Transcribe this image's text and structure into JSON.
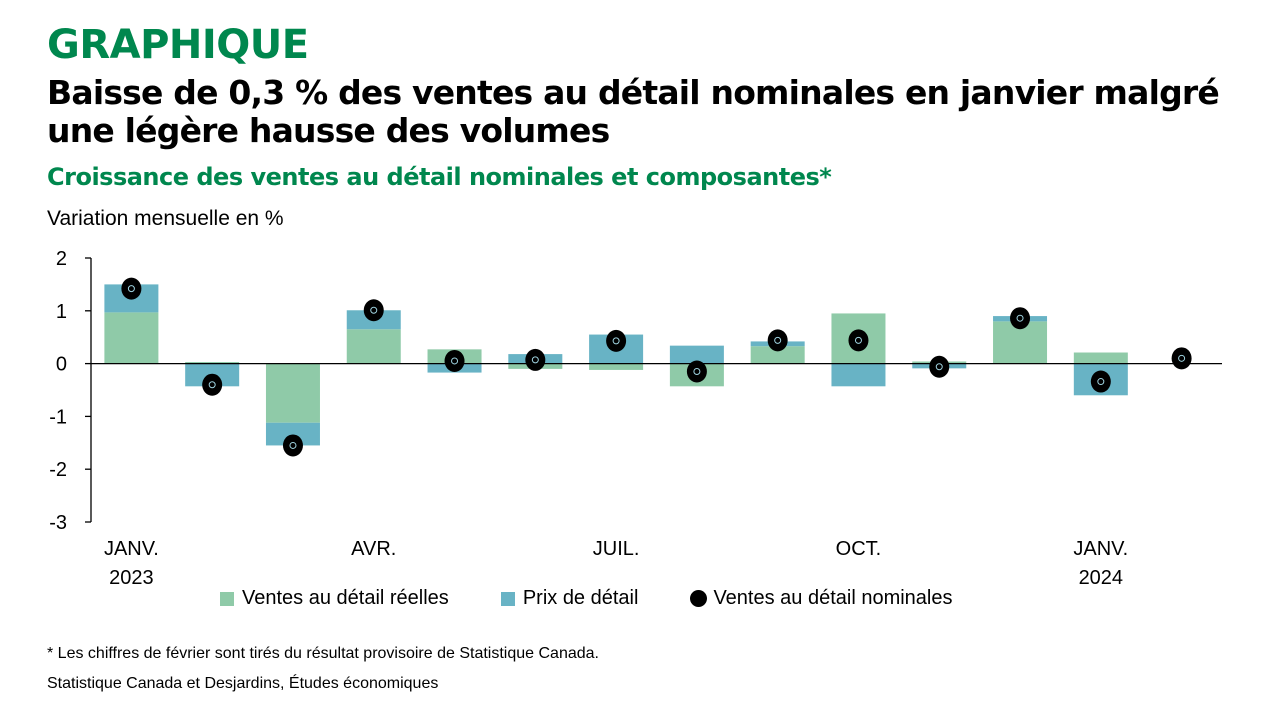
{
  "header": {
    "kicker": "GRAPHIQUE",
    "title": "Baisse de 0,3 % des ventes au détail nominales en janvier malgré une légère hausse des volumes",
    "subtitle": "Croissance des ventes au détail nominales et composantes*",
    "unit_label": "Variation mensuelle en %"
  },
  "chart_data": {
    "type": "bar",
    "stacked": true,
    "title": "Croissance des ventes au détail nominales et composantes*",
    "ylabel": "Variation mensuelle en %",
    "ylim": [
      -3,
      2
    ],
    "yticks": [
      2,
      1,
      0,
      -1,
      -2,
      -3
    ],
    "categories": [
      "2023-01",
      "2023-02",
      "2023-03",
      "2023-04",
      "2023-05",
      "2023-06",
      "2023-07",
      "2023-08",
      "2023-09",
      "2023-10",
      "2023-11",
      "2023-12",
      "2024-01",
      "2024-02"
    ],
    "xtick_labels": [
      {
        "index": 0,
        "line1": "JANV.",
        "line2": "2023"
      },
      {
        "index": 3,
        "line1": "AVR.",
        "line2": ""
      },
      {
        "index": 6,
        "line1": "JUIL.",
        "line2": ""
      },
      {
        "index": 9,
        "line1": "OCT.",
        "line2": ""
      },
      {
        "index": 12,
        "line1": "JANV.",
        "line2": "2024"
      }
    ],
    "series": [
      {
        "name": "Ventes au détail réelles",
        "kind": "bar",
        "color": "#8FCAA8",
        "values": [
          0.97,
          0.03,
          -1.12,
          0.65,
          0.27,
          -0.1,
          -0.12,
          -0.43,
          0.33,
          0.95,
          0.04,
          0.8,
          0.21,
          null
        ]
      },
      {
        "name": "Prix de détail",
        "kind": "bar",
        "color": "#68B3C5",
        "values": [
          0.53,
          -0.43,
          -0.43,
          0.36,
          -0.17,
          0.18,
          0.55,
          0.34,
          0.09,
          -0.43,
          -0.09,
          0.1,
          -0.6,
          null
        ]
      },
      {
        "name": "Ventes au détail nominales",
        "kind": "dot",
        "color": "#000000",
        "values": [
          1.42,
          -0.4,
          -1.55,
          1.01,
          0.05,
          0.07,
          0.43,
          -0.15,
          0.44,
          0.44,
          -0.06,
          0.86,
          -0.34,
          0.1
        ]
      }
    ],
    "legend_position": "bottom"
  },
  "footer": {
    "note": "* Les chiffres de février sont tirés du résultat provisoire de Statistique Canada.",
    "source": "Statistique Canada et Desjardins, Études économiques"
  }
}
